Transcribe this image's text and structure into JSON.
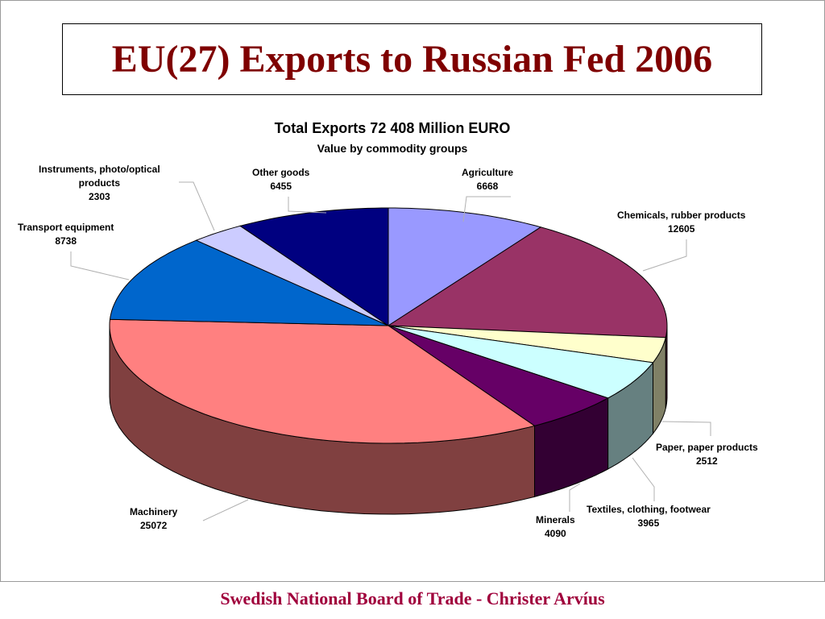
{
  "slide": {
    "title": "EU(27) Exports to Russian Fed 2006",
    "footer": "Swedish National Board of Trade - Christer Arvíus"
  },
  "chart_data": {
    "type": "pie",
    "title": "Total Exports 72 408 Million EURO",
    "subtitle": "Value by commodity groups",
    "three_d": true,
    "categories": [
      "Agriculture",
      "Chemicals, rubber products",
      "Paper, paper products",
      "Textiles, clothing, footwear",
      "Minerals",
      "Machinery",
      "Transport equipment",
      "Instruments, photo/optical products",
      "Other goods"
    ],
    "values": [
      6668,
      12605,
      2512,
      3965,
      4090,
      25072,
      8738,
      2303,
      6455
    ],
    "colors": [
      "#9999ff",
      "#993366",
      "#ffffcc",
      "#ccffff",
      "#660066",
      "#ff8080",
      "#0066cc",
      "#ccccff",
      "#000080"
    ],
    "label_lines": [
      [
        "Agriculture",
        "6668"
      ],
      [
        "Chemicals, rubber products",
        "12605"
      ],
      [
        "Paper, paper products",
        "2512"
      ],
      [
        "Textiles, clothing, footwear",
        "3965"
      ],
      [
        "Minerals",
        "4090"
      ],
      [
        "Machinery",
        "25072"
      ],
      [
        "Transport equipment",
        "8738"
      ],
      [
        "Instruments, photo/optical",
        "products",
        "2303"
      ],
      [
        "Other goods",
        "6455"
      ]
    ]
  }
}
